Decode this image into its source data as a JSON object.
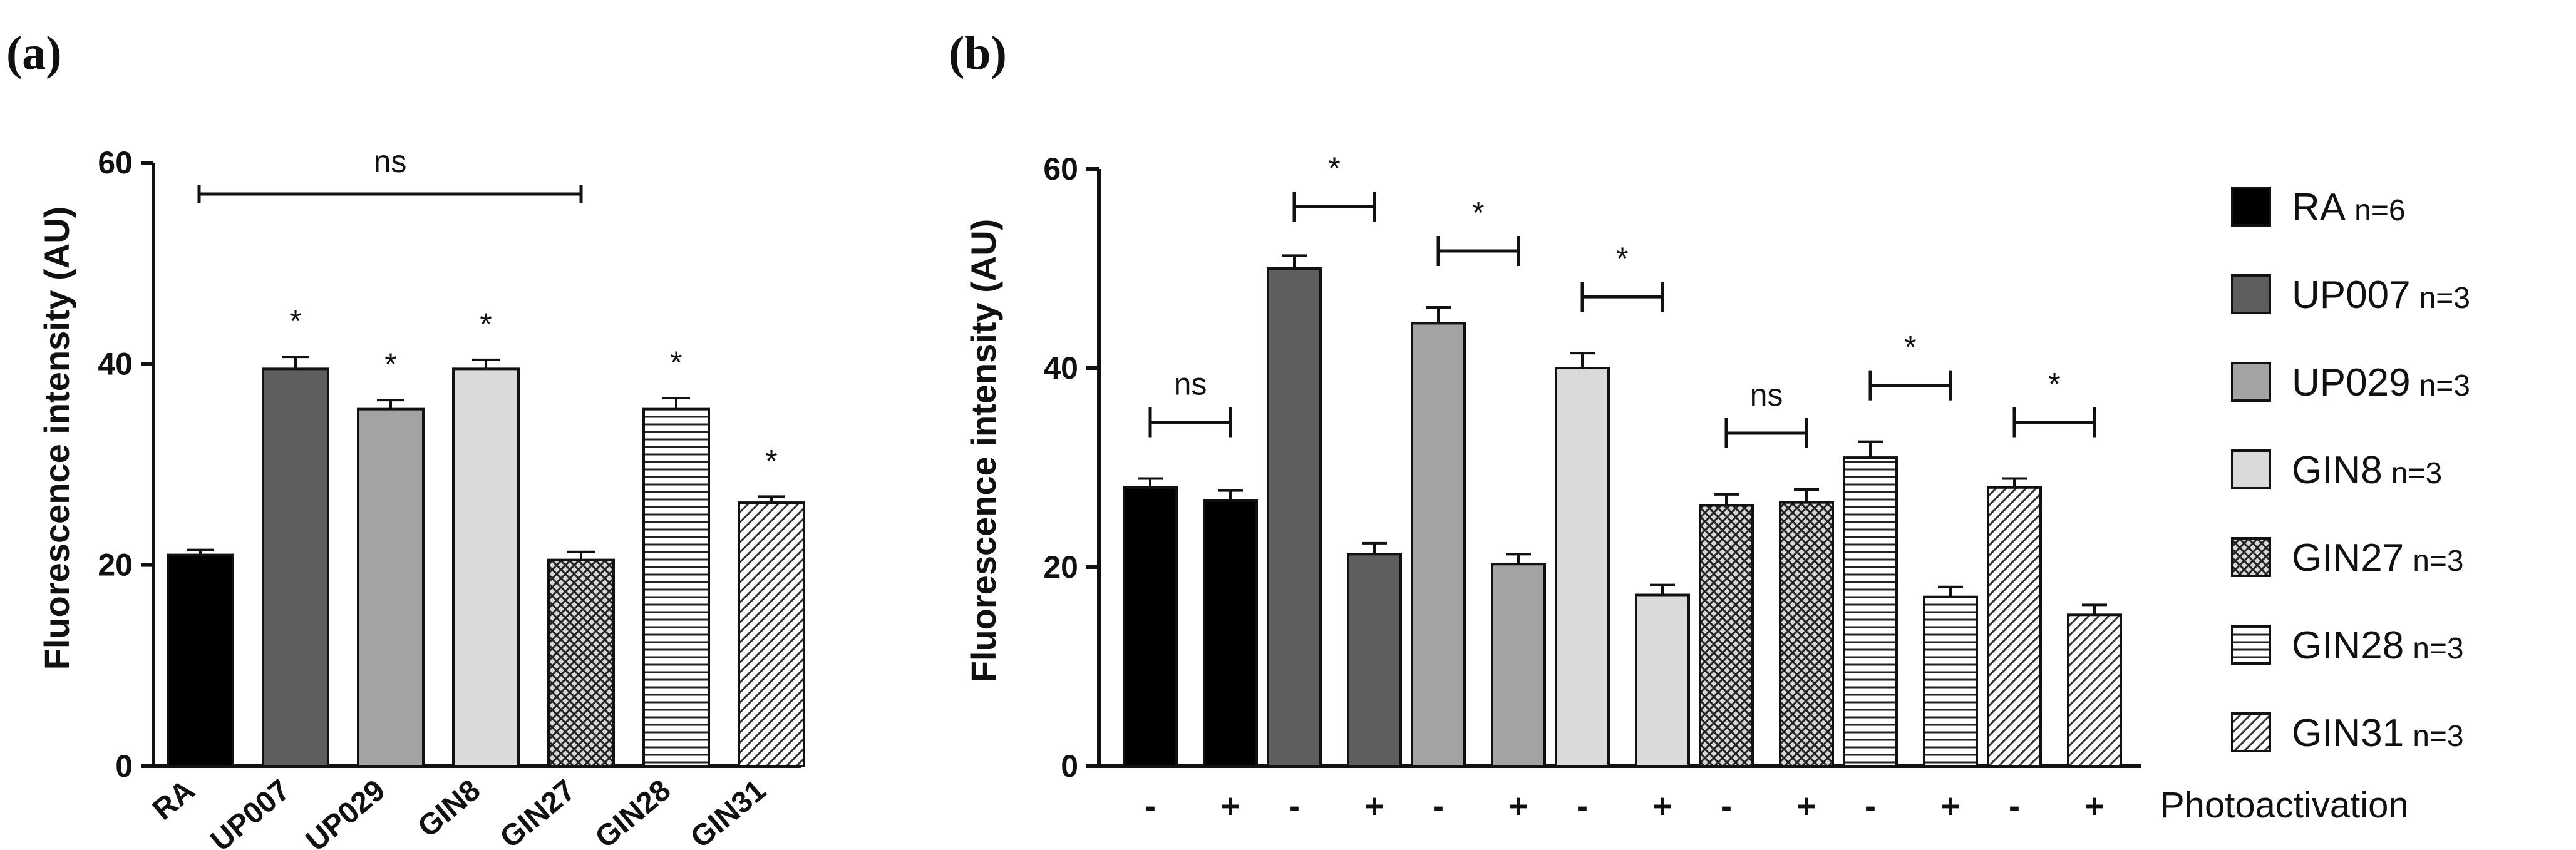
{
  "chart_data": [
    {
      "panel": "(a)",
      "type": "bar",
      "ylabel": "Fluorescence intensity (AU)",
      "ylim": [
        0,
        60
      ],
      "yticks": [
        0,
        20,
        40,
        60
      ],
      "categories": [
        "RA",
        "UP007",
        "UP029",
        "GIN8",
        "GIN27",
        "GIN28",
        "GIN31"
      ],
      "values": [
        21,
        39.5,
        35.5,
        39.5,
        20.5,
        35.5,
        26.2
      ],
      "errors": [
        0.5,
        1.2,
        0.9,
        0.9,
        0.8,
        1.1,
        0.6
      ],
      "significance": [
        "",
        "*",
        "*",
        "*",
        "",
        "*",
        "*"
      ],
      "ns_bracket": {
        "from": "RA",
        "to": "GIN27",
        "label": "ns"
      }
    },
    {
      "panel": "(b)",
      "type": "bar",
      "ylabel": "Fluorescence intensity (AU)",
      "ylim": [
        0,
        60
      ],
      "yticks": [
        0,
        20,
        40,
        60
      ],
      "xlabel": "Photoactivation",
      "photo_labels": [
        "-",
        "+"
      ],
      "groups": [
        {
          "name": "RA",
          "n": "n=6",
          "values": [
            28,
            26.7
          ],
          "errors": [
            0.9,
            1.0
          ],
          "sig": "ns"
        },
        {
          "name": "UP007",
          "n": "n=3",
          "values": [
            50,
            21.3
          ],
          "errors": [
            1.3,
            1.1
          ],
          "sig": "*"
        },
        {
          "name": "UP029",
          "n": "n=3",
          "values": [
            44.5,
            20.3
          ],
          "errors": [
            1.6,
            1.0
          ],
          "sig": "*"
        },
        {
          "name": "GIN8",
          "n": "n=3",
          "values": [
            40,
            17.2
          ],
          "errors": [
            1.5,
            1.0
          ],
          "sig": "*"
        },
        {
          "name": "GIN27",
          "n": "n=3",
          "values": [
            26.2,
            26.5
          ],
          "errors": [
            1.1,
            1.3
          ],
          "sig": "ns"
        },
        {
          "name": "GIN28",
          "n": "n=3",
          "values": [
            31,
            17
          ],
          "errors": [
            1.6,
            1.0
          ],
          "sig": "*"
        },
        {
          "name": "GIN31",
          "n": "n=3",
          "values": [
            28,
            15.2
          ],
          "errors": [
            0.9,
            1.0
          ],
          "sig": "*"
        }
      ]
    }
  ],
  "styles": {
    "RA": {
      "fill": "#000000",
      "pattern": "solid"
    },
    "UP007": {
      "fill": "#5e5e5e",
      "pattern": "solid"
    },
    "UP029": {
      "fill": "#a3a3a3",
      "pattern": "solid"
    },
    "GIN8": {
      "fill": "#dadada",
      "pattern": "solid"
    },
    "GIN27": {
      "fill": "#d0d0d0",
      "pattern": "crosshatch"
    },
    "GIN28": {
      "fill": "#ffffff",
      "pattern": "hlines"
    },
    "GIN31": {
      "fill": "#ffffff",
      "pattern": "diagonal"
    }
  }
}
